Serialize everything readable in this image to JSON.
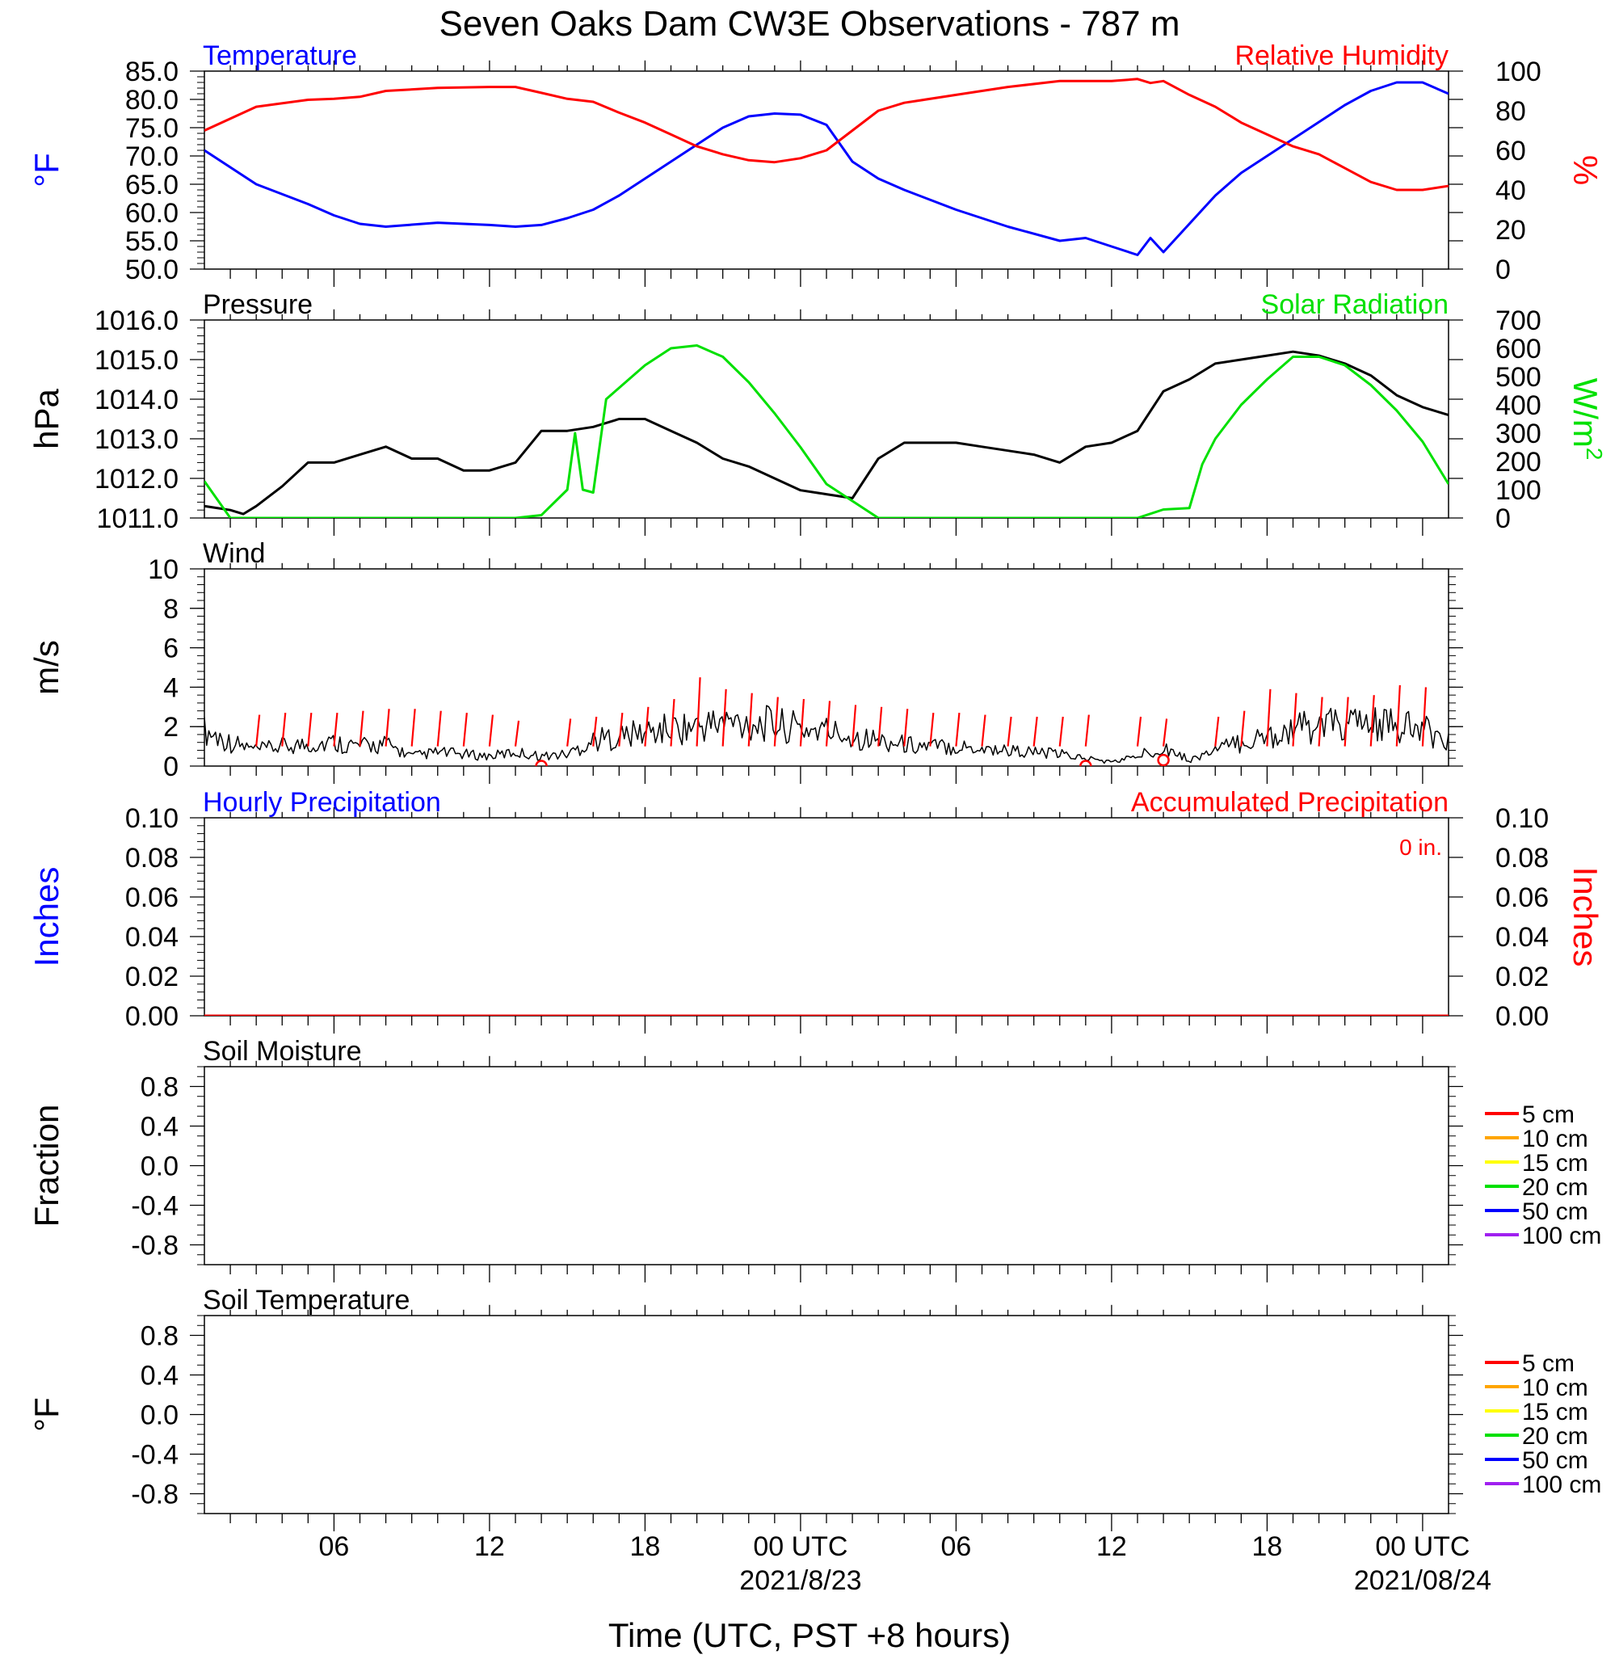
{
  "title": "Seven Oaks Dam CW3E Observations - 787 m",
  "xaxis": {
    "label": "Time (UTC, PST +8 hours)",
    "tick_labels": [
      "06",
      "12",
      "18",
      "00 UTC",
      "06",
      "12",
      "18",
      "00 UTC"
    ],
    "tick_hours": [
      6,
      12,
      18,
      24,
      30,
      36,
      42,
      48
    ],
    "date_labels": [
      {
        "hour": 24,
        "text": "2021/8/23"
      },
      {
        "hour": 48,
        "text": "2021/08/24"
      }
    ],
    "range_hours": [
      1,
      49
    ]
  },
  "colors": {
    "blue": "#0000ff",
    "red": "#ff0000",
    "green": "#00e000",
    "black": "#000000",
    "orange": "#ffa500",
    "yellow": "#ffff00",
    "purple": "#a020f0"
  },
  "chart_data": [
    {
      "type": "line",
      "title_left": "Temperature",
      "title_right": "Relative Humidity",
      "ylabel_left": "°F",
      "ylabel_right": "%",
      "ylim_left": [
        50,
        85
      ],
      "ylim_right": [
        0,
        100
      ],
      "yticks_left": [
        "85.0",
        "80.0",
        "75.0",
        "70.0",
        "65.0",
        "60.0",
        "55.0",
        "50.0"
      ],
      "yticks_right": [
        "100",
        "80",
        "60",
        "40",
        "20",
        "0"
      ],
      "x_hours": [
        1,
        3,
        5,
        6,
        7,
        8,
        10,
        12,
        13,
        14,
        15,
        16,
        17,
        18,
        19,
        20,
        21,
        22,
        23,
        24,
        25,
        26,
        27,
        28,
        30,
        32,
        34,
        35,
        36,
        37,
        37.5,
        38,
        39,
        40,
        41,
        42,
        43,
        44,
        45,
        46,
        47,
        48,
        49
      ],
      "series": [
        {
          "name": "Temperature",
          "axis": "left",
          "color": "#0000ff",
          "values": [
            71,
            65,
            61.5,
            59.5,
            58,
            57.5,
            58.2,
            57.8,
            57.5,
            57.8,
            59,
            60.5,
            63,
            66,
            69,
            72,
            75,
            77,
            77.5,
            77.3,
            75.5,
            69,
            66,
            64,
            60.5,
            57.5,
            55,
            55.5,
            54,
            52.5,
            55.5,
            53,
            58,
            63,
            67,
            70,
            73,
            76,
            79,
            81.5,
            83,
            83,
            81
          ]
        },
        {
          "name": "Relative Humidity",
          "axis": "right",
          "color": "#ff0000",
          "values": [
            70,
            82,
            85.5,
            86,
            87,
            90,
            91.5,
            92,
            92,
            89,
            86,
            84.5,
            79,
            74,
            68,
            62,
            58,
            55,
            54,
            56,
            60,
            70,
            80,
            84,
            88,
            92,
            95,
            95,
            95,
            96,
            94,
            95,
            88,
            82,
            74,
            68,
            62,
            58,
            51,
            44,
            40,
            40,
            42
          ]
        }
      ]
    },
    {
      "type": "line",
      "title_left": "Pressure",
      "title_right": "Solar Radiation",
      "ylabel_left": "hPa",
      "ylabel_right": "W/m",
      "ylabel_right_sup": "2",
      "ylim_left": [
        1011,
        1016
      ],
      "ylim_right": [
        0,
        700
      ],
      "yticks_left": [
        "1016.0",
        "1015.0",
        "1014.0",
        "1013.0",
        "1012.0",
        "1011.0"
      ],
      "yticks_right": [
        "700",
        "600",
        "500",
        "400",
        "300",
        "200",
        "100",
        "0"
      ],
      "series": [
        {
          "name": "Pressure",
          "axis": "left",
          "color": "#000000",
          "x_hours": [
            1,
            2,
            2.5,
            3,
            4,
            5,
            6,
            7,
            8,
            9,
            10,
            11,
            12,
            13,
            14,
            15,
            16,
            17,
            18,
            19,
            20,
            21,
            22,
            23,
            24,
            25,
            26,
            27,
            28,
            29,
            30,
            31,
            32,
            33,
            34,
            35,
            36,
            37,
            38,
            39,
            40,
            41,
            42,
            43,
            44,
            45,
            46,
            47,
            48,
            49
          ],
          "values": [
            1011.3,
            1011.2,
            1011.1,
            1011.3,
            1011.8,
            1012.4,
            1012.4,
            1012.6,
            1012.8,
            1012.5,
            1012.5,
            1012.2,
            1012.2,
            1012.4,
            1013.2,
            1013.2,
            1013.3,
            1013.5,
            1013.5,
            1013.2,
            1012.9,
            1012.5,
            1012.3,
            1012.0,
            1011.7,
            1011.6,
            1011.5,
            1012.5,
            1012.9,
            1012.9,
            1012.9,
            1012.8,
            1012.7,
            1012.6,
            1012.4,
            1012.8,
            1012.9,
            1013.2,
            1014.2,
            1014.5,
            1014.9,
            1015.0,
            1015.1,
            1015.2,
            1015.1,
            1014.9,
            1014.6,
            1014.1,
            1013.8,
            1013.6
          ]
        },
        {
          "name": "Solar Radiation",
          "axis": "right",
          "color": "#00e000",
          "x_hours": [
            1,
            2,
            13,
            14,
            15,
            15.3,
            15.6,
            16,
            16.5,
            17,
            18,
            19,
            20,
            21,
            22,
            23,
            24,
            25,
            27,
            28,
            30,
            35,
            37,
            38,
            39,
            39.5,
            40,
            41,
            42,
            43,
            44,
            45,
            46,
            47,
            48,
            49
          ],
          "values": [
            130,
            0,
            0,
            10,
            100,
            300,
            100,
            90,
            420,
            460,
            540,
            600,
            610,
            570,
            480,
            370,
            250,
            120,
            0,
            0,
            0,
            0,
            0,
            30,
            35,
            190,
            280,
            400,
            490,
            570,
            570,
            540,
            470,
            380,
            270,
            120
          ]
        }
      ]
    },
    {
      "type": "line",
      "title_left": "Wind",
      "ylabel_left": "m/s",
      "ylim_left": [
        0,
        10
      ],
      "yticks_left": [
        "10",
        "8",
        "6",
        "4",
        "2",
        "0"
      ],
      "series": [
        {
          "name": "Wind Speed",
          "axis": "left",
          "color": "#000000",
          "x_hours": [
            1,
            2,
            3,
            4,
            5,
            6,
            7,
            8,
            9,
            10,
            11,
            12,
            13,
            14,
            15,
            16,
            17,
            18,
            19,
            20,
            21,
            22,
            23,
            24,
            25,
            26,
            27,
            28,
            29,
            30,
            31,
            32,
            33,
            34,
            35,
            36,
            37,
            38,
            39,
            40,
            41,
            42,
            43,
            44,
            45,
            46,
            47,
            48,
            49
          ],
          "values": [
            1.8,
            1.2,
            0.8,
            1.0,
            1.1,
            1.2,
            1.0,
            1.1,
            0.5,
            0.7,
            0.6,
            0.5,
            0.7,
            0.5,
            0.6,
            1.3,
            1.5,
            1.7,
            1.9,
            2.0,
            2.2,
            2.2,
            2.1,
            1.9,
            1.8,
            1.5,
            1.3,
            1.1,
            1.0,
            1.0,
            0.9,
            0.8,
            0.7,
            0.6,
            0.4,
            0.2,
            0.5,
            1.0,
            0.3,
            0.8,
            1.2,
            1.5,
            1.9,
            2.0,
            2.1,
            2.1,
            2.0,
            1.8,
            1.4
          ]
        },
        {
          "name": "Wind Barbs",
          "axis": "left",
          "color": "#ff0000",
          "x_hours": [
            3,
            4,
            5,
            6,
            7,
            8,
            9,
            10,
            11,
            12,
            13,
            15,
            16,
            17,
            18,
            19,
            20,
            21,
            22,
            23,
            24,
            25,
            26,
            27,
            28,
            29,
            30,
            31,
            32,
            33,
            34,
            35,
            37,
            38,
            40,
            41,
            42,
            43,
            44,
            45,
            46,
            47,
            48
          ],
          "values": [
            2.6,
            2.7,
            2.7,
            2.7,
            2.8,
            2.9,
            2.9,
            2.8,
            2.7,
            2.6,
            2.3,
            2.4,
            2.5,
            2.7,
            3.0,
            3.4,
            4.5,
            3.9,
            3.7,
            3.5,
            3.4,
            3.3,
            3.1,
            3.0,
            2.9,
            2.7,
            2.7,
            2.6,
            2.5,
            2.5,
            2.5,
            2.6,
            2.5,
            2.4,
            2.5,
            2.8,
            3.9,
            3.7,
            3.5,
            3.5,
            3.6,
            4.1,
            4.0
          ]
        },
        {
          "name": "Calm",
          "axis": "left",
          "color": "#ff0000",
          "x_hours": [
            14,
            35,
            38
          ],
          "values": [
            0,
            0,
            0.3
          ]
        }
      ]
    },
    {
      "type": "line",
      "title_left": "Hourly Precipitation",
      "title_right": "Accumulated Precipitation",
      "annotation": "0 in.",
      "ylabel_left": "Inches",
      "ylabel_right": "Inches",
      "ylim_left": [
        0,
        0.1
      ],
      "ylim_right": [
        0,
        0.1
      ],
      "yticks_left": [
        "0.10",
        "0.08",
        "0.06",
        "0.04",
        "0.02",
        "0.00"
      ],
      "yticks_right": [
        "0.10",
        "0.08",
        "0.06",
        "0.04",
        "0.02",
        "0.00"
      ],
      "series": [
        {
          "name": "Hourly Precipitation",
          "axis": "left",
          "color": "#0000ff",
          "x_hours": [
            1,
            49
          ],
          "values": [
            0,
            0
          ]
        },
        {
          "name": "Accumulated Precipitation",
          "axis": "right",
          "color": "#ff0000",
          "x_hours": [
            1,
            49
          ],
          "values": [
            0,
            0
          ]
        }
      ]
    },
    {
      "type": "line",
      "title_left": "Soil Moisture",
      "ylabel_left": "Fraction",
      "ylim_left": [
        -1,
        1
      ],
      "yticks_left": [
        "0.8",
        "0.4",
        "0.0",
        "-0.4",
        "-0.8"
      ],
      "legend": [
        {
          "name": "5 cm",
          "color": "#ff0000"
        },
        {
          "name": "10 cm",
          "color": "#ffa500"
        },
        {
          "name": "15 cm",
          "color": "#ffff00"
        },
        {
          "name": "20 cm",
          "color": "#00e000"
        },
        {
          "name": "50 cm",
          "color": "#0000ff"
        },
        {
          "name": "100 cm",
          "color": "#a020f0"
        }
      ],
      "series": []
    },
    {
      "type": "line",
      "title_left": "Soil Temperature",
      "ylabel_left": "°F",
      "ylim_left": [
        -1,
        1
      ],
      "yticks_left": [
        "0.8",
        "0.4",
        "0.0",
        "-0.4",
        "-0.8"
      ],
      "legend": [
        {
          "name": "5 cm",
          "color": "#ff0000"
        },
        {
          "name": "10 cm",
          "color": "#ffa500"
        },
        {
          "name": "15 cm",
          "color": "#ffff00"
        },
        {
          "name": "20 cm",
          "color": "#00e000"
        },
        {
          "name": "50 cm",
          "color": "#0000ff"
        },
        {
          "name": "100 cm",
          "color": "#a020f0"
        }
      ],
      "series": []
    }
  ]
}
